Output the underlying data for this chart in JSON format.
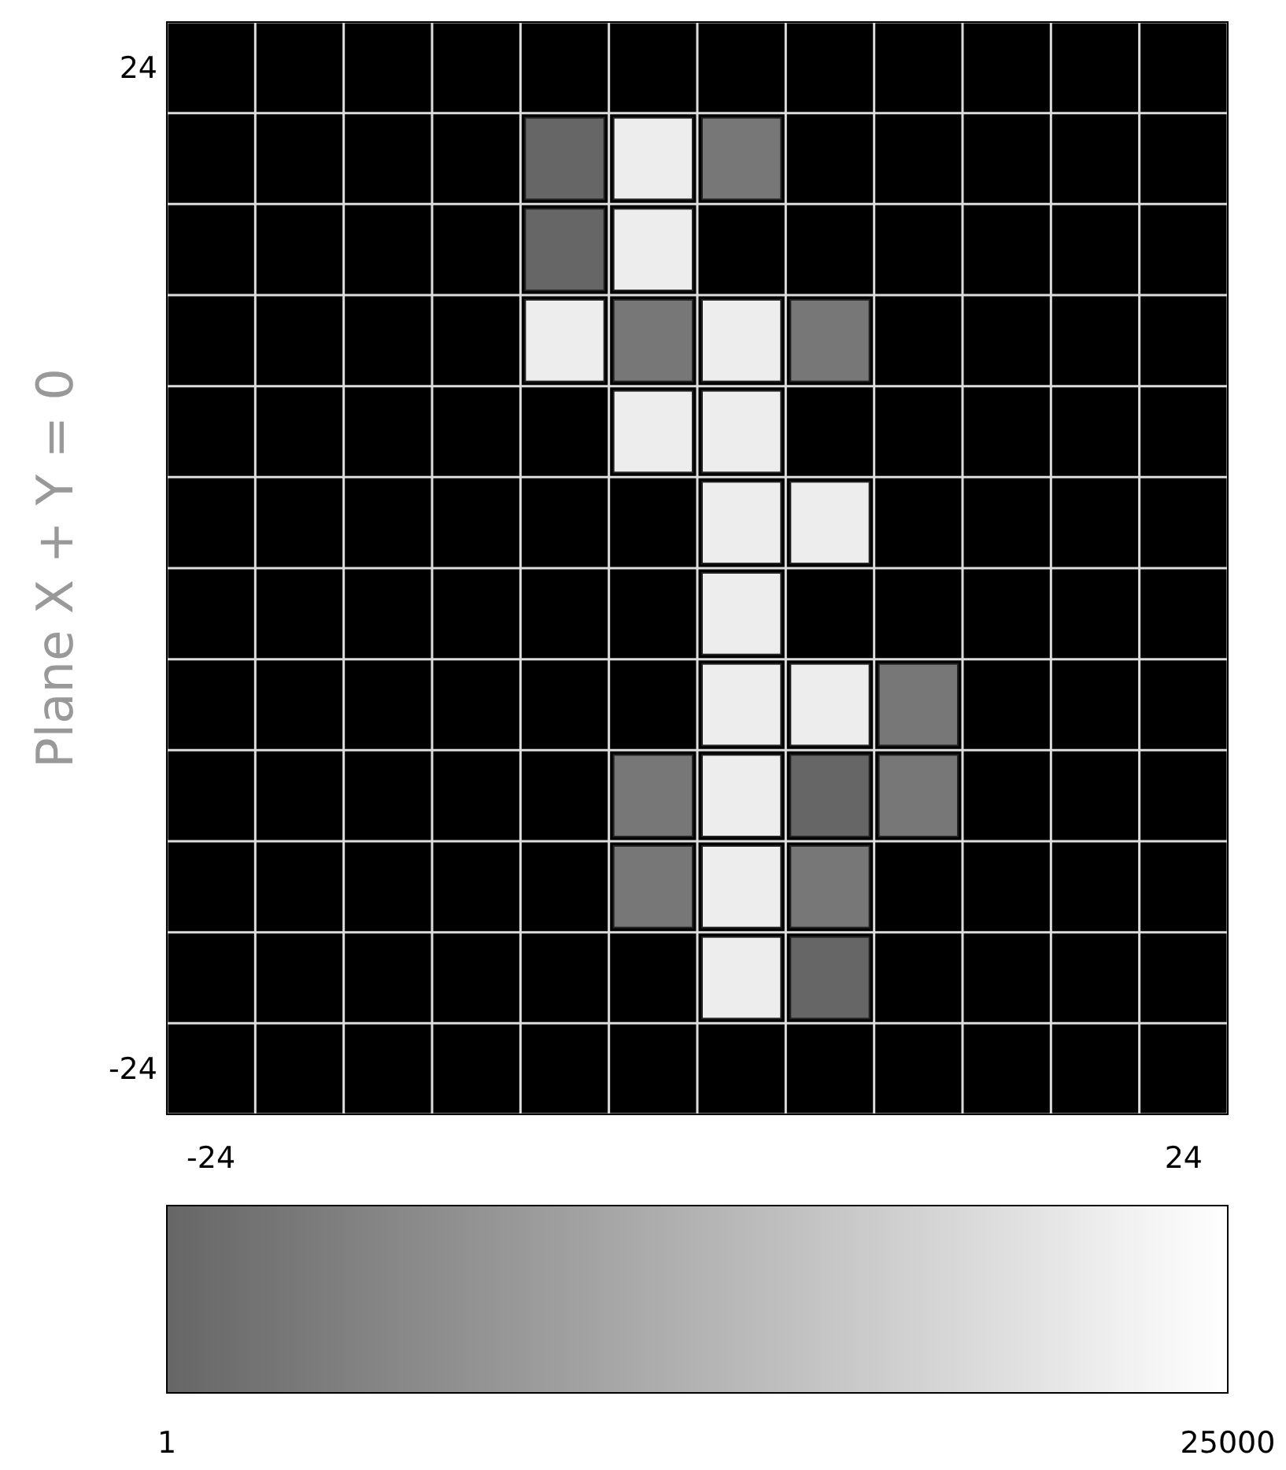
{
  "chart_data": {
    "type": "heatmap",
    "ylabel": "Plane X + Y = 0",
    "categories": [
      "-24",
      null,
      null,
      null,
      null,
      null,
      null,
      null,
      null,
      null,
      null,
      "24"
    ],
    "y_categories": [
      "24",
      null,
      null,
      null,
      null,
      null,
      null,
      null,
      null,
      null,
      null,
      "-24"
    ],
    "cells": [
      [
        null,
        null,
        null,
        null,
        null,
        null,
        null,
        null,
        null,
        null,
        null,
        null
      ],
      [
        null,
        null,
        null,
        null,
        1,
        22000,
        2800,
        null,
        null,
        null,
        null,
        null
      ],
      [
        null,
        null,
        null,
        null,
        1,
        22000,
        null,
        null,
        null,
        null,
        null,
        null
      ],
      [
        null,
        null,
        null,
        null,
        22000,
        2800,
        22000,
        2800,
        null,
        null,
        null,
        null
      ],
      [
        null,
        null,
        null,
        null,
        null,
        22000,
        22000,
        null,
        null,
        null,
        null,
        null
      ],
      [
        null,
        null,
        null,
        null,
        null,
        null,
        22000,
        22000,
        null,
        null,
        null,
        null
      ],
      [
        null,
        null,
        null,
        null,
        null,
        null,
        22000,
        null,
        null,
        null,
        null,
        null
      ],
      [
        null,
        null,
        null,
        null,
        null,
        null,
        22000,
        22000,
        2800,
        null,
        null,
        null
      ],
      [
        null,
        null,
        null,
        null,
        null,
        2800,
        22000,
        1,
        2800,
        null,
        null,
        null
      ],
      [
        null,
        null,
        null,
        null,
        null,
        2800,
        22000,
        2800,
        null,
        null,
        null,
        null
      ],
      [
        null,
        null,
        null,
        null,
        null,
        null,
        22000,
        1,
        null,
        null,
        null,
        null
      ],
      [
        null,
        null,
        null,
        null,
        null,
        null,
        null,
        null,
        null,
        null,
        null,
        null
      ]
    ],
    "clim": [
      1,
      25000
    ],
    "cticks": [
      1,
      25000
    ]
  }
}
